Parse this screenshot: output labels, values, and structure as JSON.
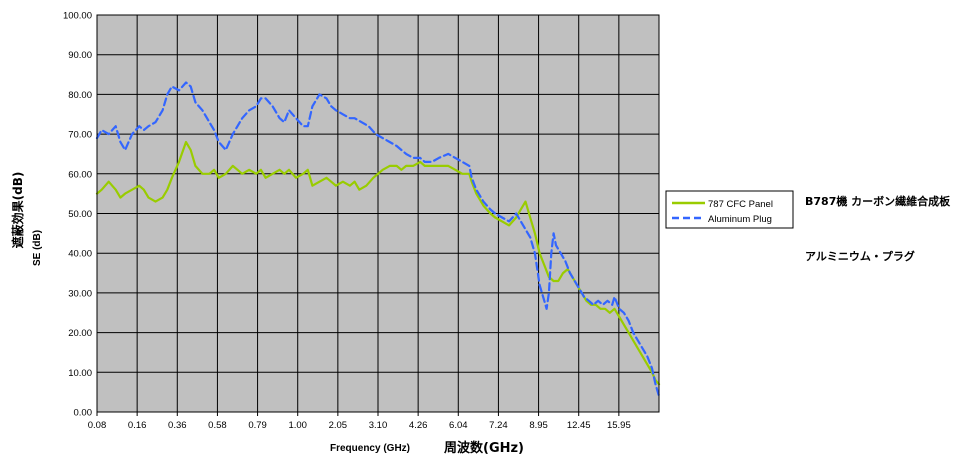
{
  "chart_data": {
    "type": "line",
    "title": "",
    "xlabel": "Frequency (GHz)",
    "xlabel_jp": "周波数(GHz)",
    "ylabel": "SE (dB)",
    "ylabel_jp": "遮蔽効果(dB)",
    "ylim": [
      0,
      100
    ],
    "y_ticks": [
      "0.00",
      "10.00",
      "20.00",
      "30.00",
      "40.00",
      "50.00",
      "60.00",
      "70.00",
      "80.00",
      "90.00",
      "100.00"
    ],
    "x_ticks": [
      "0.08",
      "0.16",
      "0.36",
      "0.58",
      "0.79",
      "1.00",
      "2.05",
      "3.10",
      "4.26",
      "6.04",
      "7.24",
      "8.95",
      "12.45",
      "15.95"
    ],
    "grid": true,
    "plot_background": "#c0c0c0",
    "legend_position": "right",
    "series": [
      {
        "name": "787 CFC Panel",
        "name_jp": "B787機 カーボン繊維合成板",
        "color": "#99cc00",
        "style": "solid",
        "points": [
          [
            0,
            55
          ],
          [
            0.2,
            56
          ],
          [
            0.5,
            58
          ],
          [
            0.8,
            56
          ],
          [
            1.0,
            54
          ],
          [
            1.2,
            55
          ],
          [
            1.5,
            56
          ],
          [
            1.8,
            57
          ],
          [
            2.0,
            56
          ],
          [
            2.2,
            54
          ],
          [
            2.5,
            53
          ],
          [
            2.8,
            54
          ],
          [
            3.0,
            56
          ],
          [
            3.2,
            59
          ],
          [
            3.5,
            63
          ],
          [
            3.8,
            68
          ],
          [
            4.0,
            66
          ],
          [
            4.2,
            62
          ],
          [
            4.5,
            60
          ],
          [
            4.8,
            60
          ],
          [
            5.0,
            61
          ],
          [
            5.2,
            59
          ],
          [
            5.5,
            60
          ],
          [
            5.8,
            62
          ],
          [
            6.0,
            61
          ],
          [
            6.2,
            60
          ],
          [
            6.5,
            61
          ],
          [
            6.8,
            60
          ],
          [
            7.0,
            61
          ],
          [
            7.2,
            59
          ],
          [
            7.5,
            60
          ],
          [
            7.8,
            61
          ],
          [
            8.0,
            60
          ],
          [
            8.2,
            61
          ],
          [
            8.5,
            59
          ],
          [
            8.8,
            60
          ],
          [
            9.0,
            61
          ],
          [
            9.2,
            57
          ],
          [
            9.5,
            58
          ],
          [
            9.8,
            59
          ],
          [
            10.0,
            58
          ],
          [
            10.2,
            57
          ],
          [
            10.5,
            58
          ],
          [
            10.8,
            57
          ],
          [
            11.0,
            58
          ],
          [
            11.2,
            56
          ],
          [
            11.5,
            57
          ],
          [
            11.8,
            59
          ],
          [
            12.0,
            60
          ],
          [
            12.2,
            61
          ],
          [
            12.5,
            62
          ],
          [
            12.8,
            62
          ],
          [
            13.0,
            61
          ],
          [
            13.2,
            62
          ],
          [
            13.5,
            62
          ],
          [
            13.8,
            63
          ],
          [
            14.0,
            62
          ],
          [
            14.3,
            62
          ],
          [
            14.6,
            62
          ],
          [
            15.0,
            62
          ],
          [
            15.3,
            61
          ],
          [
            15.6,
            60
          ],
          [
            15.9,
            60
          ],
          [
            16.0,
            58
          ],
          [
            16.2,
            55
          ],
          [
            16.5,
            52
          ],
          [
            16.8,
            50
          ],
          [
            17.0,
            49
          ],
          [
            17.3,
            48
          ],
          [
            17.6,
            47
          ],
          [
            17.9,
            49
          ],
          [
            18.1,
            51
          ],
          [
            18.3,
            53
          ],
          [
            18.5,
            49
          ],
          [
            18.7,
            45
          ],
          [
            18.9,
            40
          ],
          [
            19.1,
            37
          ],
          [
            19.3,
            34
          ],
          [
            19.5,
            33
          ],
          [
            19.7,
            33
          ],
          [
            19.9,
            35
          ],
          [
            20.1,
            36
          ],
          [
            20.3,
            34
          ],
          [
            20.5,
            32
          ],
          [
            20.7,
            30
          ],
          [
            20.9,
            28
          ],
          [
            21.1,
            27
          ],
          [
            21.3,
            27
          ],
          [
            21.5,
            26
          ],
          [
            21.7,
            26
          ],
          [
            21.9,
            25
          ],
          [
            22.1,
            26
          ],
          [
            22.3,
            24
          ],
          [
            22.5,
            22
          ],
          [
            22.7,
            20
          ],
          [
            22.9,
            18
          ],
          [
            23.1,
            16
          ],
          [
            23.3,
            14
          ],
          [
            23.5,
            12
          ],
          [
            23.7,
            10
          ],
          [
            23.85,
            8
          ],
          [
            24.0,
            7
          ]
        ]
      },
      {
        "name": "Aluminum Plug",
        "name_jp": "アルミニウム・プラグ",
        "color": "#3366ff",
        "style": "dashed",
        "points": [
          [
            0,
            69
          ],
          [
            0.2,
            71
          ],
          [
            0.5,
            70
          ],
          [
            0.8,
            72
          ],
          [
            1.0,
            68
          ],
          [
            1.2,
            66
          ],
          [
            1.5,
            70
          ],
          [
            1.8,
            72
          ],
          [
            2.0,
            71
          ],
          [
            2.2,
            72
          ],
          [
            2.5,
            73
          ],
          [
            2.8,
            76
          ],
          [
            3.0,
            80
          ],
          [
            3.2,
            82
          ],
          [
            3.5,
            81
          ],
          [
            3.8,
            83
          ],
          [
            4.0,
            82
          ],
          [
            4.2,
            78
          ],
          [
            4.5,
            76
          ],
          [
            4.8,
            73
          ],
          [
            5.0,
            71
          ],
          [
            5.2,
            68
          ],
          [
            5.5,
            66
          ],
          [
            5.8,
            70
          ],
          [
            6.0,
            72
          ],
          [
            6.2,
            74
          ],
          [
            6.5,
            76
          ],
          [
            6.8,
            77
          ],
          [
            7.0,
            79
          ],
          [
            7.2,
            79
          ],
          [
            7.5,
            77
          ],
          [
            7.8,
            74
          ],
          [
            8.0,
            73
          ],
          [
            8.2,
            76
          ],
          [
            8.5,
            74
          ],
          [
            8.8,
            72
          ],
          [
            9.0,
            72
          ],
          [
            9.2,
            77
          ],
          [
            9.5,
            80
          ],
          [
            9.8,
            79
          ],
          [
            10.0,
            77
          ],
          [
            10.2,
            76
          ],
          [
            10.5,
            75
          ],
          [
            10.8,
            74
          ],
          [
            11.0,
            74
          ],
          [
            11.3,
            73
          ],
          [
            11.6,
            72
          ],
          [
            11.9,
            70
          ],
          [
            12.2,
            69
          ],
          [
            12.5,
            68
          ],
          [
            12.8,
            67
          ],
          [
            13.0,
            66
          ],
          [
            13.2,
            65
          ],
          [
            13.5,
            64
          ],
          [
            13.8,
            64
          ],
          [
            14.0,
            63
          ],
          [
            14.3,
            63
          ],
          [
            14.6,
            64
          ],
          [
            15.0,
            65
          ],
          [
            15.3,
            64
          ],
          [
            15.6,
            63
          ],
          [
            15.9,
            62
          ],
          [
            16.0,
            59
          ],
          [
            16.2,
            56
          ],
          [
            16.5,
            53
          ],
          [
            16.8,
            51
          ],
          [
            17.0,
            50
          ],
          [
            17.3,
            49
          ],
          [
            17.6,
            48
          ],
          [
            17.9,
            50
          ],
          [
            18.1,
            48
          ],
          [
            18.3,
            46
          ],
          [
            18.5,
            44
          ],
          [
            18.7,
            40
          ],
          [
            18.9,
            32
          ],
          [
            19.1,
            28
          ],
          [
            19.2,
            26
          ],
          [
            19.3,
            30
          ],
          [
            19.4,
            40
          ],
          [
            19.5,
            45
          ],
          [
            19.6,
            42
          ],
          [
            19.8,
            40
          ],
          [
            20.0,
            38
          ],
          [
            20.2,
            35
          ],
          [
            20.4,
            33
          ],
          [
            20.6,
            31
          ],
          [
            20.8,
            29
          ],
          [
            21.0,
            28
          ],
          [
            21.2,
            27
          ],
          [
            21.4,
            28
          ],
          [
            21.6,
            27
          ],
          [
            21.8,
            28
          ],
          [
            22.0,
            27
          ],
          [
            22.1,
            29
          ],
          [
            22.3,
            26
          ],
          [
            22.5,
            25
          ],
          [
            22.7,
            23
          ],
          [
            22.9,
            20
          ],
          [
            23.1,
            18
          ],
          [
            23.3,
            16
          ],
          [
            23.5,
            14
          ],
          [
            23.7,
            11
          ],
          [
            23.85,
            7
          ],
          [
            24.0,
            4
          ]
        ]
      }
    ]
  }
}
